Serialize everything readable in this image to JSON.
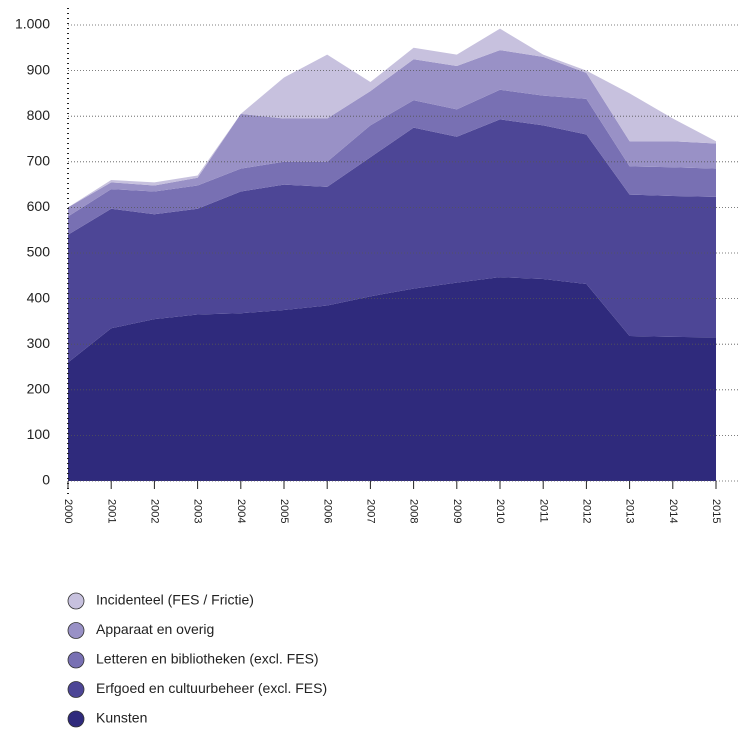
{
  "chart_data": {
    "type": "stacked_area",
    "categories": [
      "2000",
      "2001",
      "2002",
      "2003",
      "2004",
      "2005",
      "2006",
      "2007",
      "2008",
      "2009",
      "2010",
      "2011",
      "2012",
      "2013",
      "2014",
      "2015"
    ],
    "series": [
      {
        "name": "Kunsten",
        "color": "#2f2a7c",
        "values": [
          260,
          335,
          355,
          365,
          368,
          375,
          385,
          405,
          422,
          435,
          447,
          443,
          432,
          318,
          316,
          315
        ]
      },
      {
        "name": "Erfgoed en cultuurbeheer (excl. FES)",
        "color": "#4d4696",
        "values": [
          280,
          262,
          230,
          232,
          267,
          275,
          260,
          305,
          353,
          320,
          346,
          337,
          328,
          310,
          309,
          308
        ]
      },
      {
        "name": "Letteren en bibliotheken (excl. FES)",
        "color": "#7870b3",
        "values": [
          40,
          43,
          50,
          51,
          50,
          50,
          55,
          70,
          60,
          60,
          65,
          65,
          78,
          62,
          63,
          62
        ]
      },
      {
        "name": "Apparaat en overig",
        "color": "#9991c6",
        "values": [
          20,
          15,
          13,
          17,
          120,
          95,
          95,
          75,
          90,
          95,
          87,
          85,
          57,
          55,
          57,
          55
        ]
      },
      {
        "name": "Incidenteel (FES / Frictie)",
        "color": "#c7c1de",
        "values": [
          0,
          5,
          7,
          5,
          0,
          90,
          140,
          20,
          25,
          25,
          47,
          5,
          5,
          105,
          50,
          5
        ]
      }
    ],
    "ylim": [
      0,
      1000
    ],
    "yticks": [
      0,
      100,
      200,
      300,
      400,
      500,
      600,
      700,
      800,
      900,
      {
        "value": 1000,
        "label": "1.000"
      }
    ],
    "grid": true,
    "legend": "bottom"
  }
}
